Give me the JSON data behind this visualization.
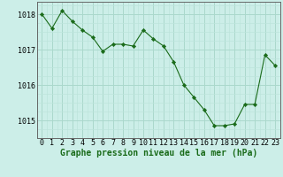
{
  "x": [
    0,
    1,
    2,
    3,
    4,
    5,
    6,
    7,
    8,
    9,
    10,
    11,
    12,
    13,
    14,
    15,
    16,
    17,
    18,
    19,
    20,
    21,
    22,
    23
  ],
  "y": [
    1018.0,
    1017.6,
    1018.1,
    1017.8,
    1017.55,
    1017.35,
    1016.95,
    1017.15,
    1017.15,
    1017.1,
    1017.55,
    1017.3,
    1017.1,
    1016.65,
    1016.0,
    1015.65,
    1015.3,
    1014.85,
    1014.85,
    1014.9,
    1015.45,
    1015.45,
    1016.85,
    1016.55
  ],
  "line_color": "#1a6b1a",
  "marker_color": "#1a6b1a",
  "bg_color": "#cceee8",
  "grid_major_color": "#aad8cc",
  "grid_minor_color": "#bde4dc",
  "axis_color": "#666666",
  "xlabel": "Graphe pression niveau de la mer (hPa)",
  "xlabel_color": "#1a6b1a",
  "ylim_min": 1014.5,
  "ylim_max": 1018.35,
  "ytick_values": [
    1015,
    1016,
    1017,
    1018
  ],
  "xtick_values": [
    0,
    1,
    2,
    3,
    4,
    5,
    6,
    7,
    8,
    9,
    10,
    11,
    12,
    13,
    14,
    15,
    16,
    17,
    18,
    19,
    20,
    21,
    22,
    23
  ],
  "font_size_xlabel": 7.0,
  "font_size_ticks": 6.0
}
